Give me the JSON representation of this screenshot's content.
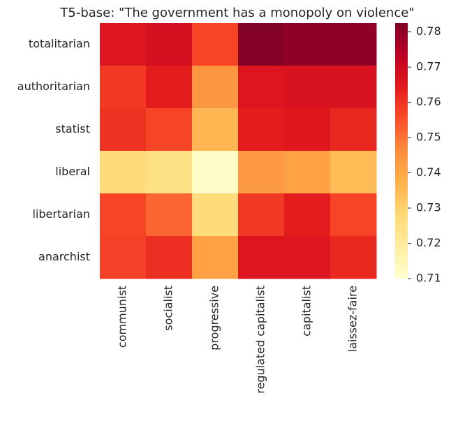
{
  "chart_data": {
    "type": "heatmap",
    "title": "T5-base: \"The government has a monopoly on violence\"",
    "x_categories": [
      "communist",
      "socialist",
      "progressive",
      "regulated capitalist",
      "capitalist",
      "laissez-faire"
    ],
    "y_categories": [
      "totalitarian",
      "authoritarian",
      "statist",
      "liberal",
      "libertarian",
      "anarchist"
    ],
    "values": [
      [
        0.766,
        0.768,
        0.757,
        0.782,
        0.78,
        0.78
      ],
      [
        0.759,
        0.764,
        0.744,
        0.766,
        0.767,
        0.767
      ],
      [
        0.76,
        0.757,
        0.736,
        0.764,
        0.765,
        0.762
      ],
      [
        0.727,
        0.725,
        0.711,
        0.743,
        0.741,
        0.735
      ],
      [
        0.757,
        0.752,
        0.727,
        0.759,
        0.764,
        0.757
      ],
      [
        0.758,
        0.761,
        0.741,
        0.766,
        0.766,
        0.762
      ]
    ],
    "colorbar": {
      "colormap": "YlOrRd",
      "vmin": 0.71,
      "vmax": 0.7825,
      "ticks": [
        "0.71",
        "0.72",
        "0.73",
        "0.74",
        "0.75",
        "0.76",
        "0.77",
        "0.78"
      ]
    },
    "grid": false
  }
}
